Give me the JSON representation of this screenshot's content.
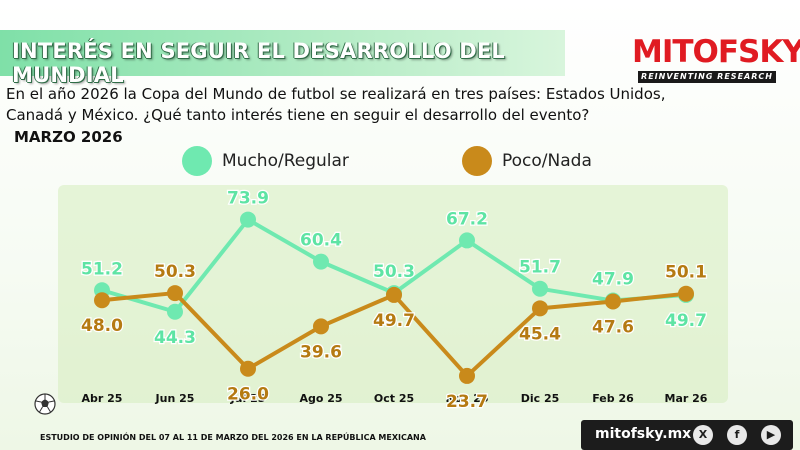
{
  "header": {
    "title": "INTERÉS EN SEGUIR EL DESARROLLO DEL MUNDIAL",
    "logo_text": "MITOFSKY",
    "logo_tagline": "REINVENTING RESEARCH"
  },
  "question": "En el año 2026 la Copa del Mundo de futbol se realizará en tres países: Estados Unidos, Canadá y México. ¿Qué tanto interés tiene en seguir el desarrollo del evento?",
  "period": "MARZO 2026",
  "colors": {
    "mucho_regular": "#6fe9b0",
    "poco_nada": "#c98a1b",
    "label_mucho": "#5ee4a4",
    "label_poco": "#b57a12"
  },
  "footer": {
    "note": "ESTUDIO DE OPINIÓN DEL 07 AL 11 DE MARZO DEL 2026 EN LA REPÚBLICA MEXICANA",
    "url": "mitofsky.mx",
    "icons": [
      "x-icon",
      "facebook-icon",
      "youtube-icon"
    ]
  },
  "chart_data": {
    "type": "line",
    "categories": [
      "Abr 25",
      "Jun 25",
      "Jul 25",
      "Ago 25",
      "Oct 25",
      "Nov 25",
      "Dic 25",
      "Feb 26",
      "Mar 26"
    ],
    "series": [
      {
        "name": "Mucho/Regular",
        "values": [
          51.2,
          44.3,
          73.9,
          60.4,
          50.3,
          67.2,
          51.7,
          47.9,
          49.7
        ]
      },
      {
        "name": "Poco/Nada",
        "values": [
          48.0,
          50.3,
          26.0,
          39.6,
          49.7,
          23.7,
          45.4,
          47.6,
          50.1
        ]
      }
    ],
    "ylim": [
      15,
      85
    ],
    "grid": false,
    "legend": "top"
  }
}
